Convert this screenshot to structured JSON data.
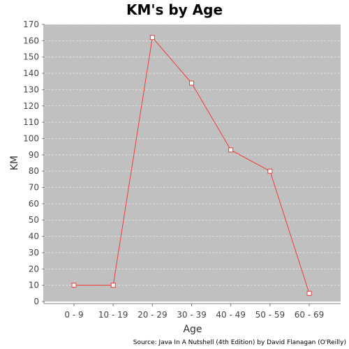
{
  "chart_data": {
    "type": "line",
    "title": "KM's by Age",
    "xlabel": "Age",
    "ylabel": "KM",
    "categories": [
      "0 - 9",
      "10 - 19",
      "20 - 29",
      "30 - 39",
      "40 - 49",
      "50 - 59",
      "60 - 69"
    ],
    "series": [
      {
        "values": [
          10,
          10,
          162,
          134,
          93,
          80,
          5
        ]
      }
    ],
    "ylim": [
      0,
      170
    ],
    "yticks": [
      0,
      10,
      20,
      30,
      40,
      50,
      60,
      70,
      80,
      90,
      100,
      110,
      120,
      130,
      140,
      150,
      160,
      170
    ],
    "grid": true,
    "legend": "none",
    "colors": {
      "plot_background": "#c0c0c0",
      "series": "#ef3b3b",
      "grid": "#e6e6e6"
    },
    "source": "Source: Java In A Nutshell (4th Edition) by David Flanagan (O'Reilly)"
  }
}
